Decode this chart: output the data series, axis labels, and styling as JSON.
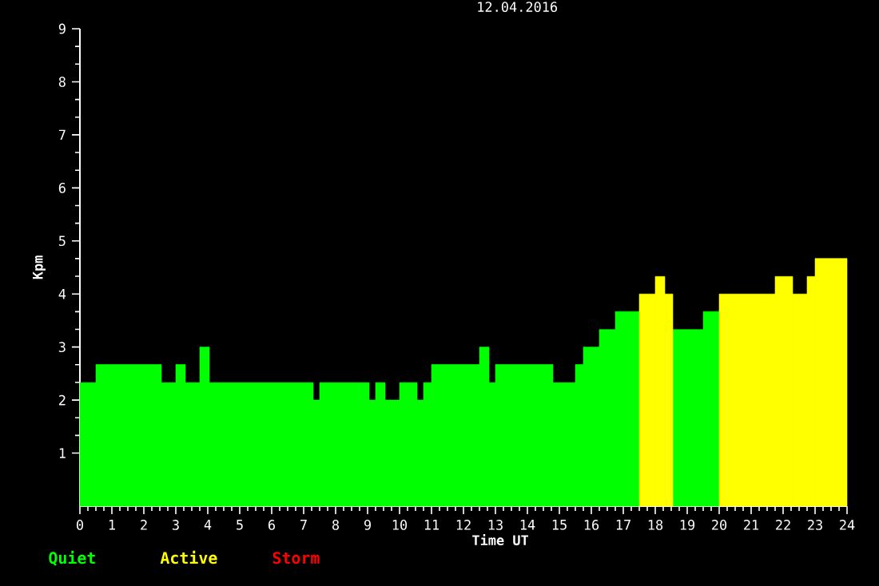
{
  "chart_data": {
    "type": "histogram",
    "title": "12.04.2016",
    "xlabel": "Time UT",
    "ylabel": "Kpm",
    "bins": [
      0,
      0.5,
      2.55,
      3.0,
      3.3,
      3.75,
      4.05,
      7.3,
      7.5,
      9.05,
      9.25,
      9.55,
      10.0,
      10.55,
      10.75,
      11.0,
      12.5,
      12.8,
      13.0,
      14.8,
      15.5,
      15.75,
      16.25,
      16.75,
      17.5,
      18.0,
      18.3,
      18.55,
      19.5,
      20.0,
      21.75,
      22.3,
      22.75,
      23.0,
      24
    ],
    "series": [
      {
        "name": "Quiet",
        "color": "#00ff00",
        "values": [
          2.33,
          2.67,
          2.33,
          2.67,
          2.33,
          3,
          2.33,
          2,
          2.33,
          2,
          2.33,
          2,
          2.33,
          2,
          2.33,
          2.67,
          3,
          2.33,
          2.67,
          2.33,
          2.67,
          3,
          3.33,
          3.67,
          null,
          null,
          null,
          3.33,
          3.67,
          null,
          null,
          null,
          null,
          null
        ]
      },
      {
        "name": "Active",
        "color": "#ffff00",
        "values": [
          null,
          null,
          null,
          null,
          null,
          null,
          null,
          null,
          null,
          null,
          null,
          null,
          null,
          null,
          null,
          null,
          null,
          null,
          null,
          null,
          null,
          null,
          null,
          null,
          4,
          4.33,
          4,
          null,
          null,
          4,
          4.33,
          4,
          4.33,
          4.67
        ]
      }
    ],
    "annotations": [
      "Storm"
    ],
    "xlim": [
      0,
      24
    ],
    "xticks": [
      0,
      1,
      2,
      3,
      4,
      5,
      6,
      7,
      8,
      9,
      10,
      11,
      12,
      13,
      14,
      15,
      16,
      17,
      18,
      19,
      20,
      21,
      22,
      23,
      24
    ],
    "ylim": [
      0,
      9
    ],
    "yticks": [
      1,
      2,
      3,
      4,
      5,
      6,
      7,
      8,
      9
    ],
    "legend": "bottom left"
  }
}
